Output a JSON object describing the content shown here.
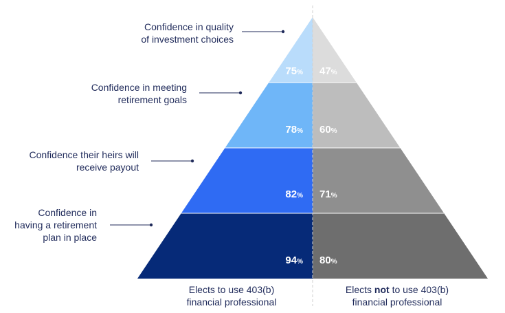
{
  "chart_data": {
    "type": "pyramid",
    "categories": [
      [
        "Confidence in quality",
        "of investment choices"
      ],
      [
        "Confidence in meeting",
        "retirement goals"
      ],
      [
        "Confidence their heirs will",
        "receive payout"
      ],
      [
        "Confidence in",
        "having a retirement",
        "plan in place"
      ]
    ],
    "series": [
      {
        "name": "Elects to use 403(b) financial professional",
        "values": [
          75,
          78,
          82,
          94
        ]
      },
      {
        "name": "Elects not to use 403(b) financial professional",
        "values": [
          47,
          60,
          71,
          80
        ]
      }
    ],
    "unit": "%",
    "colors_left": [
      "#b9dcfb",
      "#6fb6f8",
      "#2f6bf3",
      "#062a78"
    ],
    "colors_right": [
      "#dcdcdc",
      "#bdbdbd",
      "#8f8f8f",
      "#6e6e6e"
    ]
  },
  "footer": {
    "left": [
      "Elects to use 403(b)",
      "financial professional"
    ],
    "right_pre": "Elects ",
    "right_bold": "not",
    "right_post": " to use 403(b)",
    "right_line2": "financial professional"
  }
}
